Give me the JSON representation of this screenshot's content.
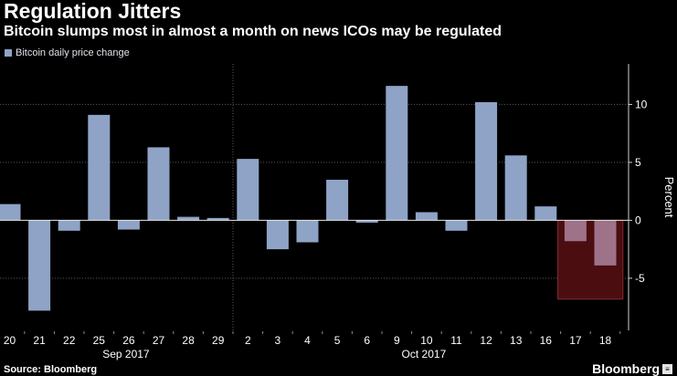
{
  "header": {
    "title": "Regulation Jitters",
    "subtitle": "Bitcoin slumps most in almost a month on news ICOs may be regulated"
  },
  "footer": {
    "source": "Source: Bloomberg",
    "brand": "Bloomberg",
    "brand_mark": "≡"
  },
  "colors": {
    "background": "#000000",
    "bar": "#8fa3c6",
    "bar_highlight": "#9e7288",
    "highlight_fill": "#4b0d10",
    "highlight_stroke": "#8c2a2e",
    "zero_line": "#e8e8e8",
    "grid": "#5a5a5a"
  },
  "chart_data": {
    "type": "bar",
    "title": "",
    "ylabel": "Percent",
    "ylim": [
      -9.5,
      13.5
    ],
    "yticks": [
      -5,
      0,
      5,
      10
    ],
    "grid": true,
    "legend": {
      "position": "top-left",
      "entries": [
        "Bitcoin daily price change"
      ]
    },
    "categories": [
      "20",
      "21",
      "22",
      "25",
      "26",
      "27",
      "28",
      "29",
      "2",
      "3",
      "4",
      "5",
      "6",
      "9",
      "10",
      "11",
      "12",
      "13",
      "16",
      "17",
      "18"
    ],
    "series": [
      {
        "name": "Bitcoin daily price change",
        "values": [
          1.4,
          -7.8,
          -0.9,
          9.1,
          -0.8,
          6.3,
          0.3,
          0.2,
          5.3,
          -2.5,
          -1.9,
          3.5,
          -0.2,
          11.6,
          0.7,
          -0.9,
          10.2,
          5.6,
          1.2,
          -1.8,
          -3.9
        ]
      }
    ],
    "month_labels": [
      {
        "label": "Sep 2017",
        "category": "26"
      },
      {
        "label": "Oct 2017",
        "category": "10"
      }
    ],
    "month_breaks_after": [
      "29"
    ],
    "highlight": {
      "from_category": "17",
      "to_category": "18",
      "ymin": -6.8,
      "ymax": 0
    }
  }
}
